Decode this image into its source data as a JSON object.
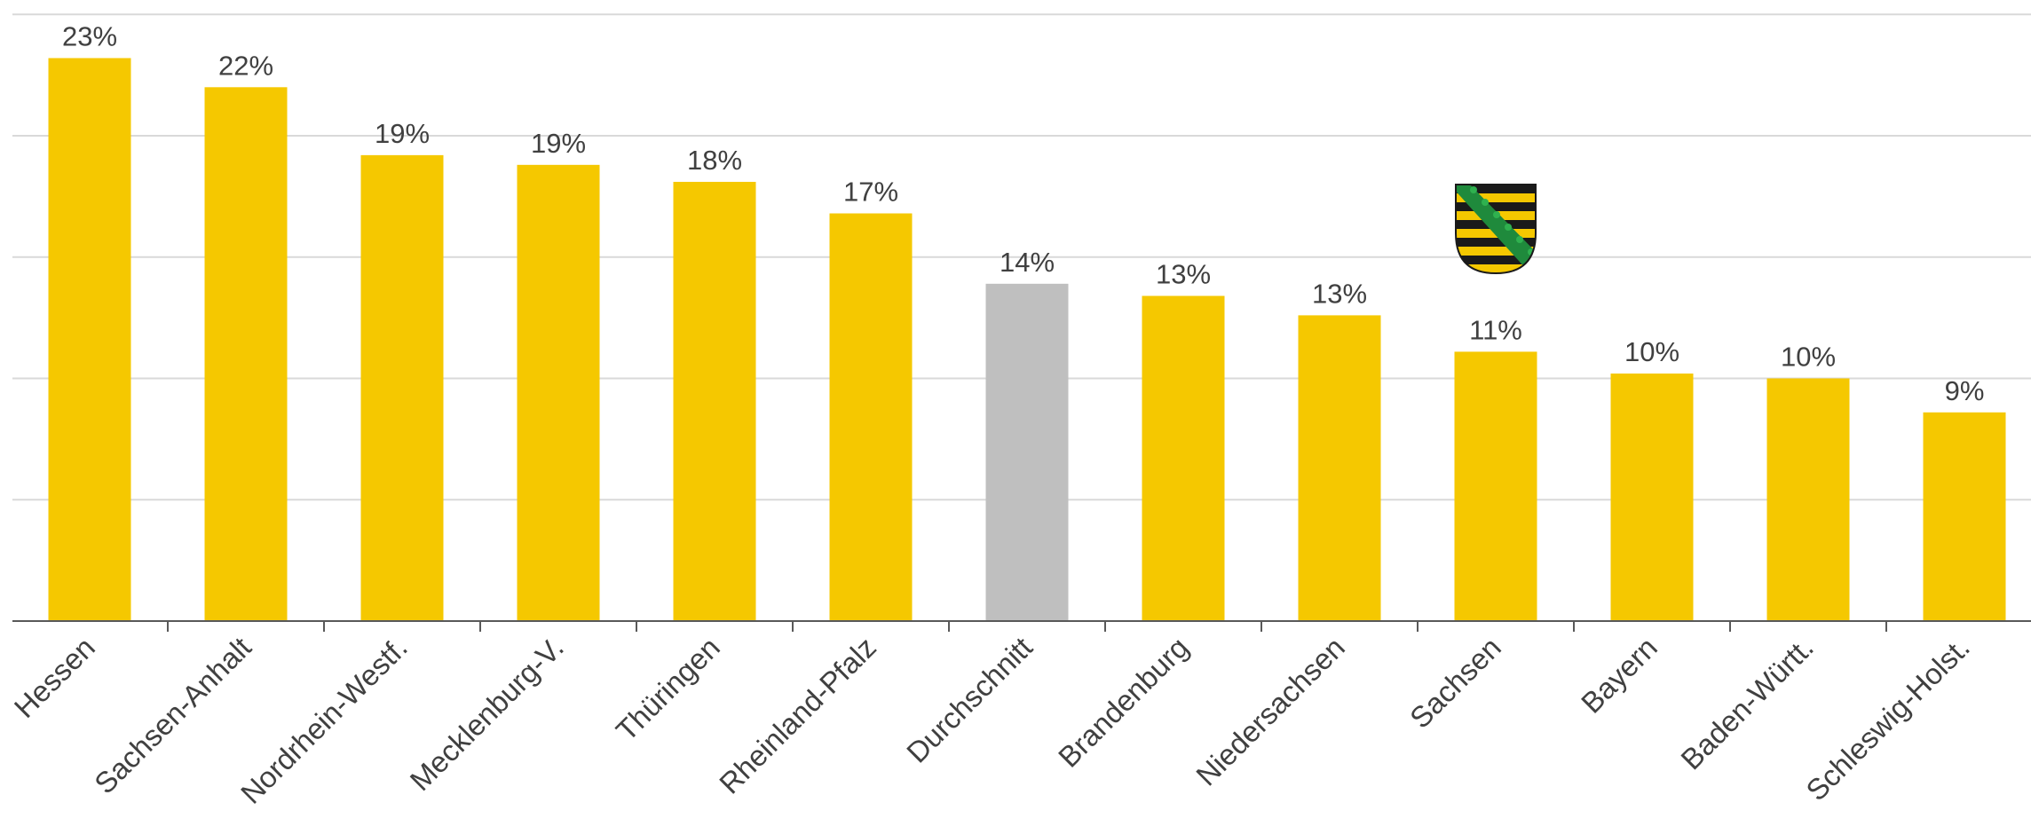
{
  "chart_data": {
    "type": "bar",
    "categories": [
      "Hessen",
      "Sachsen-Anhalt",
      "Nordrhein-Westf.",
      "Mecklenburg-V.",
      "Thüringen",
      "Rheinland-Pfalz",
      "Durchschnitt",
      "Brandenburg",
      "Niedersachsen",
      "Sachsen",
      "Bayern",
      "Baden-Württ.",
      "Schleswig-Holst."
    ],
    "values": [
      23.2,
      22.0,
      19.2,
      18.8,
      18.1,
      16.8,
      13.9,
      13.4,
      12.6,
      11.1,
      10.2,
      10.0,
      8.6
    ],
    "data_labels": [
      "23%",
      "22%",
      "19%",
      "19%",
      "18%",
      "17%",
      "14%",
      "13%",
      "13%",
      "11%",
      "10%",
      "10%",
      "9%"
    ],
    "highlight_category": "Durchschnitt",
    "emblem_category": "Sachsen",
    "ylim": [
      0,
      25
    ],
    "grid": true,
    "legend": "none",
    "title": "",
    "xlabel": "",
    "ylabel": ""
  },
  "colors": {
    "bar": "#f5c800",
    "highlight_bar": "#bfbfbf",
    "grid": "#d9d9d9",
    "axis": "#595959",
    "text": "#404040"
  },
  "icons": {
    "emblem": "saxony-coat-of-arms-icon"
  }
}
